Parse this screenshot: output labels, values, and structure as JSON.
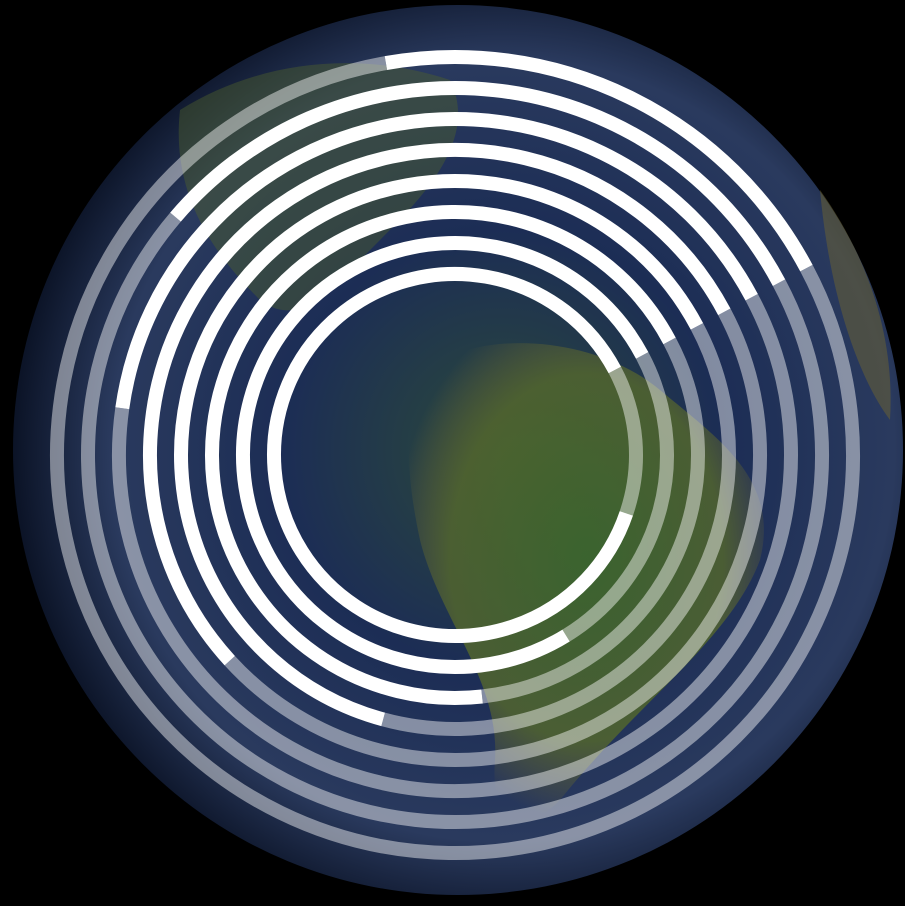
{
  "chart_data": {
    "type": "radial_bar",
    "values": [
      20,
      31,
      40,
      54,
      63,
      69,
      76,
      87
    ],
    "vlim": [
      0,
      100
    ],
    "color": "#ffffff",
    "track_color": "rgba(255,255,255,0.45)"
  }
}
